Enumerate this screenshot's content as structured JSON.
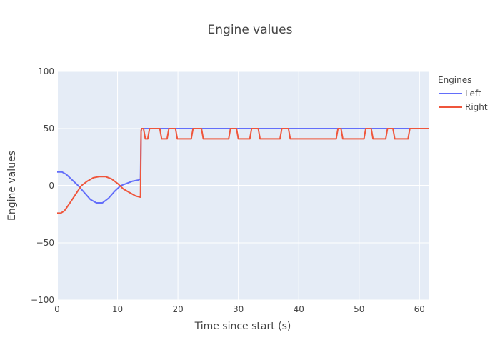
{
  "chart_data": {
    "type": "line",
    "title": "Engine values",
    "xlabel": "Time since start (s)",
    "ylabel": "Engine values",
    "xlim": [
      0,
      61.5
    ],
    "ylim": [
      -100,
      100
    ],
    "x_ticks": [
      0,
      10,
      20,
      30,
      40,
      50,
      60
    ],
    "y_ticks": [
      -100,
      -50,
      0,
      50,
      100
    ],
    "y_tick_labels": [
      "−100",
      "−50",
      "0",
      "50",
      "100"
    ],
    "grid": true,
    "legend": {
      "title": "Engines",
      "position": "top-right"
    },
    "series": [
      {
        "name": "Left",
        "color": "#636efa",
        "x": [
          0,
          0.8,
          1.5,
          2.5,
          3.5,
          4.5,
          5.5,
          6.5,
          7.5,
          8.5,
          9.5,
          10.5,
          11.5,
          12.5,
          13.5,
          13.8,
          13.9,
          14.0,
          20.0,
          61.5
        ],
        "y": [
          12,
          12,
          10,
          5,
          0,
          -6,
          -12,
          -15,
          -15,
          -11,
          -5,
          0,
          2,
          4,
          5,
          6,
          48,
          50,
          50,
          50
        ]
      },
      {
        "name": "Right",
        "color": "#ef553b",
        "x": [
          0,
          0.6,
          1.2,
          2.0,
          3.0,
          4.0,
          5.0,
          6.0,
          7.0,
          8.0,
          9.0,
          10.0,
          11.0,
          12.0,
          13.0,
          13.8,
          13.9,
          14.0,
          14.3,
          14.6,
          15.0,
          15.3,
          17.0,
          17.3,
          18.2,
          18.5,
          19.6,
          19.9,
          22.2,
          22.5,
          23.9,
          24.2,
          28.4,
          28.7,
          29.7,
          30.0,
          31.9,
          32.2,
          33.3,
          33.6,
          36.9,
          37.2,
          38.3,
          38.6,
          46.2,
          46.5,
          47.0,
          47.3,
          50.8,
          51.1,
          52.0,
          52.3,
          54.4,
          54.7,
          55.6,
          55.9,
          58.1,
          58.4,
          59.8,
          60.1,
          61.5
        ],
        "y": [
          -24,
          -24,
          -22,
          -16,
          -8,
          0,
          4,
          7,
          8,
          8,
          6,
          2,
          -3,
          -6,
          -9,
          -10,
          48,
          50,
          50,
          41,
          41,
          50,
          50,
          41,
          41,
          50,
          50,
          41,
          41,
          50,
          50,
          41,
          41,
          50,
          50,
          41,
          41,
          50,
          50,
          41,
          41,
          50,
          50,
          41,
          41,
          50,
          50,
          41,
          41,
          50,
          50,
          41,
          41,
          50,
          50,
          41,
          41,
          50,
          50,
          50,
          50
        ]
      }
    ]
  }
}
